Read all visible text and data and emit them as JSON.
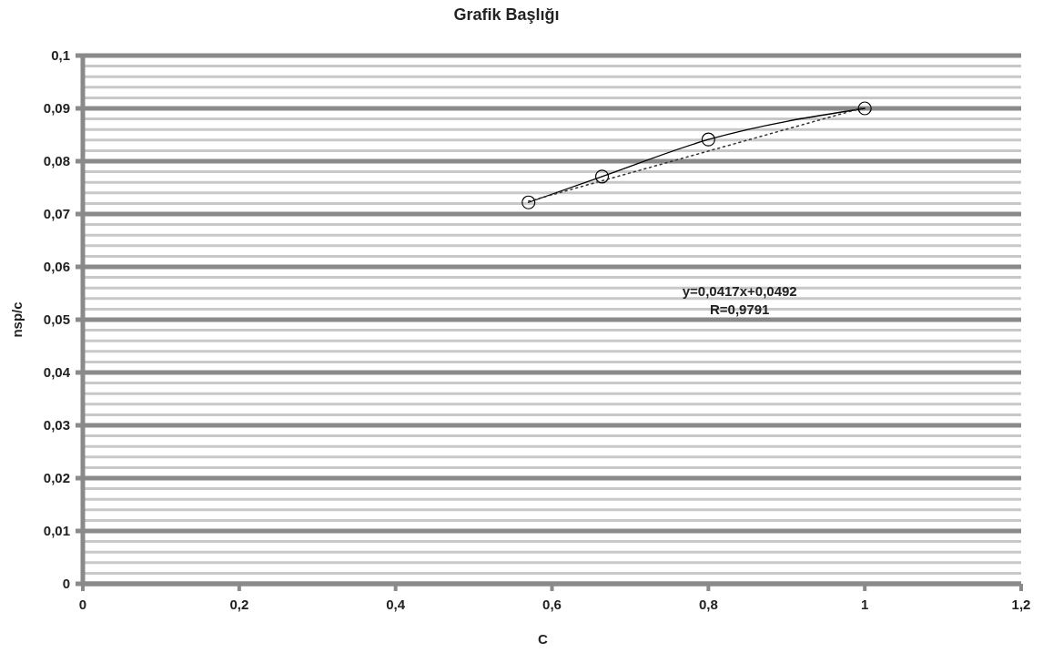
{
  "chart_data": {
    "type": "line",
    "title": "Grafik Başlığı",
    "xlabel": "C",
    "ylabel": "nsp/c",
    "xlim": [
      0,
      1.2
    ],
    "xticks": [
      {
        "value": 0,
        "label": "0"
      },
      {
        "value": 0.2,
        "label": "0,2"
      },
      {
        "value": 0.4,
        "label": "0,4"
      },
      {
        "value": 0.6,
        "label": "0,6"
      },
      {
        "value": 0.8,
        "label": "0,8"
      },
      {
        "value": 1,
        "label": "1"
      },
      {
        "value": 1.2,
        "label": "1,2"
      }
    ],
    "ylim": [
      0,
      0.1
    ],
    "yticks": [
      {
        "value": 0,
        "label": "0"
      },
      {
        "value": 0.01,
        "label": "0,01"
      },
      {
        "value": 0.02,
        "label": "0,02"
      },
      {
        "value": 0.03,
        "label": "0,03"
      },
      {
        "value": 0.04,
        "label": "0,04"
      },
      {
        "value": 0.05,
        "label": "0,05"
      },
      {
        "value": 0.06,
        "label": "0,06"
      },
      {
        "value": 0.07,
        "label": "0,07"
      },
      {
        "value": 0.08,
        "label": "0,08"
      },
      {
        "value": 0.09,
        "label": "0,09"
      },
      {
        "value": 0.1,
        "label": "0,1"
      }
    ],
    "grid": "y",
    "series": [
      {
        "color": "#000000",
        "x": [
          0.57,
          0.664,
          0.8,
          1.0
        ],
        "values": [
          0.0722,
          0.0771,
          0.0841,
          0.09
        ],
        "marker": "circle",
        "line_style": "solid"
      },
      {
        "color": "#333333",
        "x": [
          0.57,
          1.0
        ],
        "values": [
          0.0724,
          0.0902
        ],
        "marker": "none",
        "line_style": "dotted"
      }
    ],
    "annotations": [
      "y=0,0417x+0,0492",
      "R=0,9791"
    ]
  }
}
